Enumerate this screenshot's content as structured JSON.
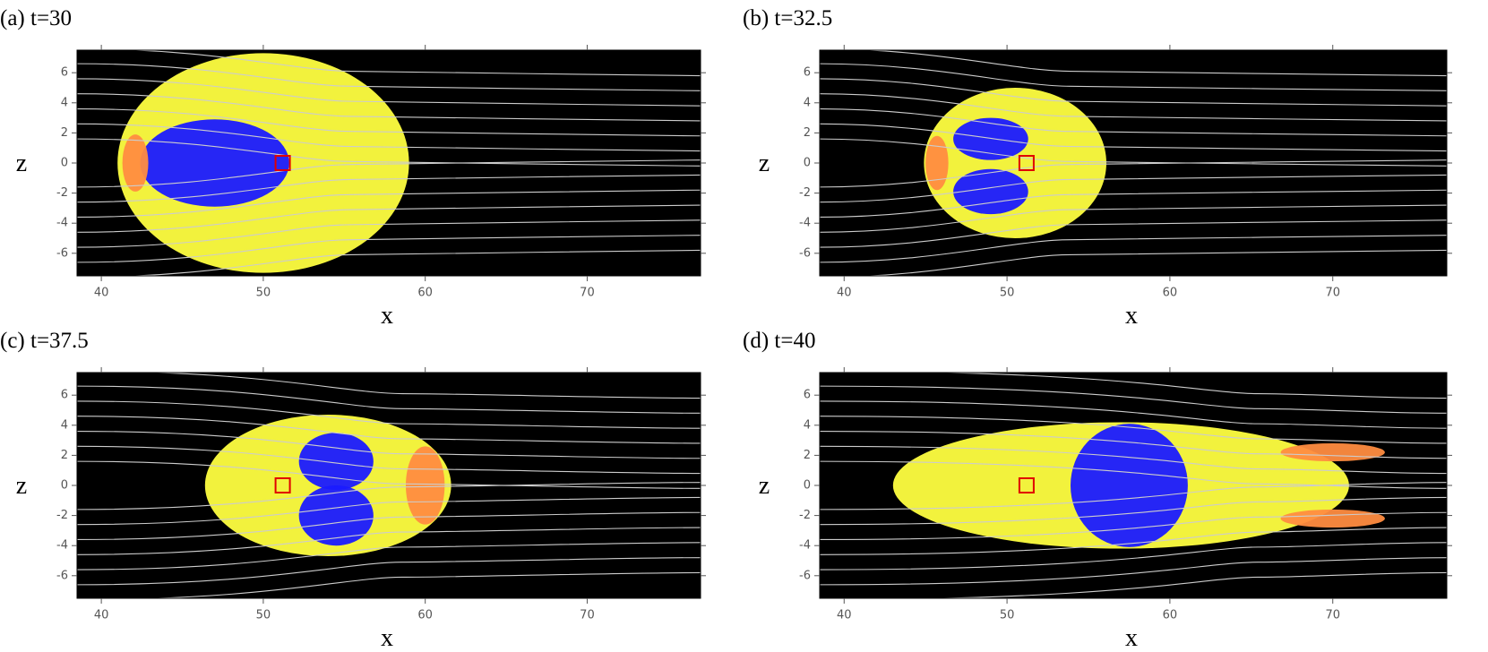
{
  "chart_data": [
    {
      "type": "region",
      "title": "(a) t=30",
      "xlabel": "x",
      "ylabel": "z",
      "xlim": [
        38.5,
        77
      ],
      "ylim": [
        -7.5,
        7.5
      ],
      "xticks": [
        40,
        50,
        60,
        70
      ],
      "yticks": [
        -6,
        -4,
        -2,
        0,
        2,
        4,
        6
      ],
      "regions": [
        {
          "color": "#ffff40",
          "x": 50,
          "z": 0,
          "rx": 9,
          "rz": 7.3
        },
        {
          "color": "#1a1aff",
          "x": 47,
          "z": 0,
          "rx": 4.6,
          "rz": 2.9
        },
        {
          "color": "#ff8c40",
          "x": 42.1,
          "z": 0,
          "rx": 0.8,
          "rz": 1.9
        }
      ],
      "marker": {
        "x": 51.2,
        "z": 0,
        "color": "#e00000"
      }
    },
    {
      "type": "region",
      "title": "(b) t=32.5",
      "xlabel": "x",
      "ylabel": "z",
      "xlim": [
        38.5,
        77
      ],
      "ylim": [
        -7.5,
        7.5
      ],
      "xticks": [
        40,
        50,
        60,
        70
      ],
      "yticks": [
        -6,
        -4,
        -2,
        0,
        2,
        4,
        6
      ],
      "regions": [
        {
          "color": "#ffff40",
          "x": 50.5,
          "z": 0,
          "rx": 5.6,
          "rz": 5
        },
        {
          "color": "#1a1aff",
          "x": 49,
          "z": 1.6,
          "rx": 2.3,
          "rz": 1.4
        },
        {
          "color": "#1a1aff",
          "x": 49,
          "z": -1.9,
          "rx": 2.3,
          "rz": 1.5
        },
        {
          "color": "#ff8c40",
          "x": 45.7,
          "z": 0,
          "rx": 0.7,
          "rz": 1.8
        }
      ],
      "marker": {
        "x": 51.2,
        "z": 0,
        "color": "#e00000"
      }
    },
    {
      "type": "region",
      "title": "(c) t=37.5",
      "xlabel": "x",
      "ylabel": "z",
      "xlim": [
        38.5,
        77
      ],
      "ylim": [
        -7.5,
        7.5
      ],
      "xticks": [
        40,
        50,
        60,
        70
      ],
      "yticks": [
        -6,
        -4,
        -2,
        0,
        2,
        4,
        6
      ],
      "regions": [
        {
          "color": "#ffff40",
          "x": 54,
          "z": 0,
          "rx": 7.6,
          "rz": 4.7
        },
        {
          "color": "#1a1aff",
          "x": 54.5,
          "z": 1.6,
          "rx": 2.3,
          "rz": 1.9
        },
        {
          "color": "#1a1aff",
          "x": 54.5,
          "z": -2,
          "rx": 2.3,
          "rz": 2
        },
        {
          "color": "#ff8c40",
          "x": 60,
          "z": 0,
          "rx": 1.2,
          "rz": 2.6
        }
      ],
      "marker": {
        "x": 51.2,
        "z": 0,
        "color": "#e00000"
      }
    },
    {
      "type": "region",
      "title": "(d) t=40",
      "xlabel": "x",
      "ylabel": "z",
      "xlim": [
        38.5,
        77
      ],
      "ylim": [
        -7.5,
        7.5
      ],
      "xticks": [
        40,
        50,
        60,
        70
      ],
      "yticks": [
        -6,
        -4,
        -2,
        0,
        2,
        4,
        6
      ],
      "regions": [
        {
          "color": "#ffff40",
          "x": 57,
          "z": 0,
          "rx": 14,
          "rz": 4.2
        },
        {
          "color": "#1a1aff",
          "x": 57.5,
          "z": 0,
          "rx": 3.6,
          "rz": 4.1
        },
        {
          "color": "#ff8c40",
          "x": 70,
          "z": 2.2,
          "rx": 3.2,
          "rz": 0.6
        },
        {
          "color": "#ff8c40",
          "x": 70,
          "z": -2.2,
          "rx": 3.2,
          "rz": 0.6
        }
      ],
      "marker": {
        "x": 51.2,
        "z": 0,
        "color": "#e00000"
      }
    }
  ]
}
